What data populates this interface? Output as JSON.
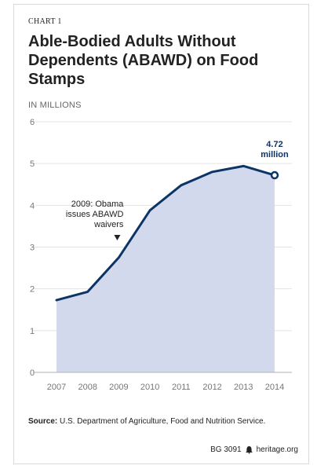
{
  "header": {
    "kicker": "CHART 1",
    "title": "Able-Bodied Adults Without Dependents (ABAWD) on Food Stamps",
    "unit": "IN MILLIONS"
  },
  "source": {
    "label": "Source:",
    "text": "U.S. Department of Agriculture, Food and Nutrition Service."
  },
  "footer": {
    "code": "BG 3091",
    "site": "heritage.org",
    "logo_icon": "liberty-bell-icon"
  },
  "colors": {
    "line": "#0c3566",
    "fill": "#d3d9ec",
    "grid": "#e3e3e3"
  },
  "chart_data": {
    "type": "area",
    "x": [
      "2007",
      "2008",
      "2009",
      "2010",
      "2011",
      "2012",
      "2013",
      "2014"
    ],
    "values": [
      1.73,
      1.93,
      2.75,
      3.88,
      4.48,
      4.8,
      4.94,
      4.72
    ],
    "ylim": [
      0,
      6
    ],
    "yticks": [
      "0",
      "1",
      "2",
      "3",
      "4",
      "5",
      "6"
    ],
    "grid": true,
    "annotations": [
      {
        "x": "2009",
        "text_lines": [
          "2009: Obama",
          "issues ABAWD",
          "waivers"
        ]
      }
    ],
    "callout": {
      "x": "2014",
      "lines": [
        "4.72",
        "million"
      ]
    }
  }
}
